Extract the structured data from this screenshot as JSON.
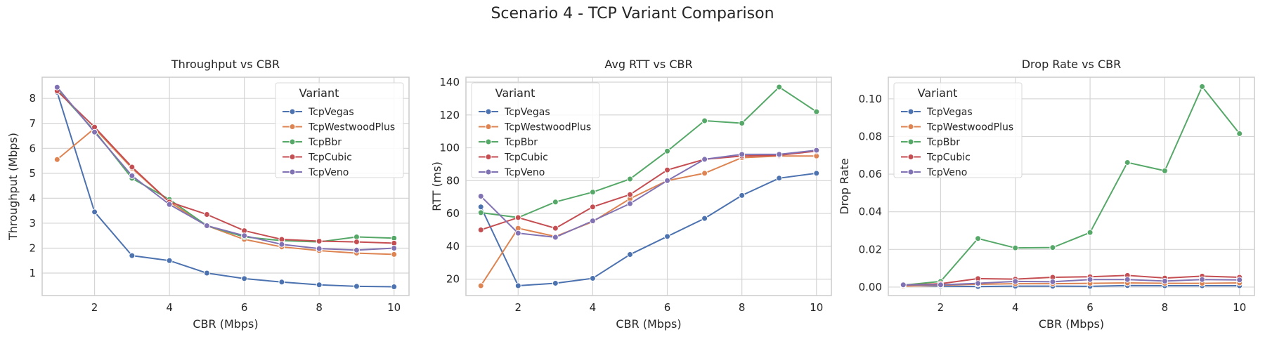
{
  "figure": {
    "title": "Scenario 4 - TCP Variant Comparison"
  },
  "colors": {
    "TcpVegas": "#4c72b0",
    "TcpWestwoodPlus": "#dd8452",
    "TcpBbr": "#55a868",
    "TcpCubic": "#c44e52",
    "TcpVeno": "#8172b3",
    "grid": "#d5d5d5",
    "frame": "#cccccc"
  },
  "chart_data": [
    {
      "type": "line",
      "title": "Throughput vs CBR",
      "xlabel": "CBR (Mbps)",
      "ylabel": "Throughput (Mbps)",
      "x": [
        1,
        2,
        3,
        4,
        5,
        6,
        7,
        8,
        9,
        10
      ],
      "xticks": [
        2,
        4,
        6,
        8,
        10
      ],
      "xlim": [
        0.6,
        10.4
      ],
      "yticks": [
        1,
        2,
        3,
        4,
        5,
        6,
        7,
        8
      ],
      "ylim": [
        0.1,
        8.85
      ],
      "grid": true,
      "legend": {
        "title": "Variant",
        "placement": "upper right"
      },
      "series": [
        {
          "name": "TcpVegas",
          "values": [
            8.25,
            3.45,
            1.7,
            1.5,
            1.0,
            0.78,
            0.64,
            0.53,
            0.47,
            0.45
          ]
        },
        {
          "name": "TcpWestwoodPlus",
          "values": [
            5.55,
            6.8,
            5.2,
            3.85,
            2.9,
            2.35,
            2.05,
            1.9,
            1.8,
            1.75
          ]
        },
        {
          "name": "TcpBbr",
          "values": [
            8.35,
            6.7,
            4.8,
            3.95,
            2.9,
            2.45,
            2.3,
            2.25,
            2.45,
            2.4
          ]
        },
        {
          "name": "TcpCubic",
          "values": [
            8.3,
            6.85,
            5.25,
            3.85,
            3.35,
            2.7,
            2.35,
            2.28,
            2.25,
            2.2
          ]
        },
        {
          "name": "TcpVeno",
          "values": [
            8.45,
            6.65,
            4.9,
            3.75,
            2.9,
            2.5,
            2.15,
            1.98,
            1.92,
            2.0
          ]
        }
      ]
    },
    {
      "type": "line",
      "title": "Avg RTT vs CBR",
      "xlabel": "CBR (Mbps)",
      "ylabel": "RTT (ms)",
      "x": [
        1,
        2,
        3,
        4,
        5,
        6,
        7,
        8,
        9,
        10
      ],
      "xticks": [
        2,
        4,
        6,
        8,
        10
      ],
      "xlim": [
        0.6,
        10.4
      ],
      "yticks": [
        20,
        40,
        60,
        80,
        100,
        120,
        140
      ],
      "ylim": [
        10,
        143
      ],
      "grid": true,
      "legend": {
        "title": "Variant",
        "placement": "upper left"
      },
      "series": [
        {
          "name": "TcpVegas",
          "values": [
            64,
            16,
            17.5,
            20.5,
            35,
            46,
            57,
            71,
            81.5,
            84.5
          ]
        },
        {
          "name": "TcpWestwoodPlus",
          "values": [
            16,
            51,
            46,
            55,
            69,
            80,
            84.5,
            94,
            95,
            95
          ]
        },
        {
          "name": "TcpBbr",
          "values": [
            60.5,
            57.5,
            67,
            73,
            81,
            98,
            116.5,
            115,
            137,
            122
          ]
        },
        {
          "name": "TcpCubic",
          "values": [
            50,
            57.5,
            51,
            64,
            71.5,
            86.5,
            93,
            95,
            95.5,
            98
          ]
        },
        {
          "name": "TcpVeno",
          "values": [
            70.5,
            48,
            45.5,
            55.5,
            66,
            80,
            93,
            96,
            96,
            98.5
          ]
        }
      ]
    },
    {
      "type": "line",
      "title": "Drop Rate vs CBR",
      "xlabel": "CBR (Mbps)",
      "ylabel": "Drop Rate",
      "x": [
        1,
        2,
        3,
        4,
        5,
        6,
        7,
        8,
        9,
        10
      ],
      "xticks": [
        2,
        4,
        6,
        8,
        10
      ],
      "xlim": [
        0.6,
        10.4
      ],
      "yticks": [
        0.0,
        0.02,
        0.04,
        0.06,
        0.08,
        0.1
      ],
      "ytick_labels": [
        "0.00",
        "0.02",
        "0.04",
        "0.06",
        "0.08",
        "0.10"
      ],
      "ylim": [
        -0.0045,
        0.1115
      ],
      "grid": true,
      "legend": {
        "title": "Variant",
        "placement": "upper left"
      },
      "series": [
        {
          "name": "TcpVegas",
          "values": [
            0.0008,
            0.0005,
            0.0003,
            0.0005,
            0.0005,
            0.0004,
            0.0008,
            0.0007,
            0.0007,
            0.0007
          ]
        },
        {
          "name": "TcpWestwoodPlus",
          "values": [
            0.0005,
            0.001,
            0.0015,
            0.0018,
            0.0018,
            0.002,
            0.0022,
            0.002,
            0.002,
            0.0022
          ]
        },
        {
          "name": "TcpBbr",
          "values": [
            0.001,
            0.003,
            0.0258,
            0.0208,
            0.021,
            0.029,
            0.0662,
            0.0618,
            0.1065,
            0.0815
          ]
        },
        {
          "name": "TcpCubic",
          "values": [
            0.001,
            0.0018,
            0.0045,
            0.0042,
            0.0052,
            0.0055,
            0.0062,
            0.0048,
            0.0058,
            0.0052
          ]
        },
        {
          "name": "TcpVeno",
          "values": [
            0.0012,
            0.0012,
            0.002,
            0.003,
            0.0028,
            0.004,
            0.004,
            0.0032,
            0.004,
            0.0038
          ]
        }
      ]
    }
  ]
}
